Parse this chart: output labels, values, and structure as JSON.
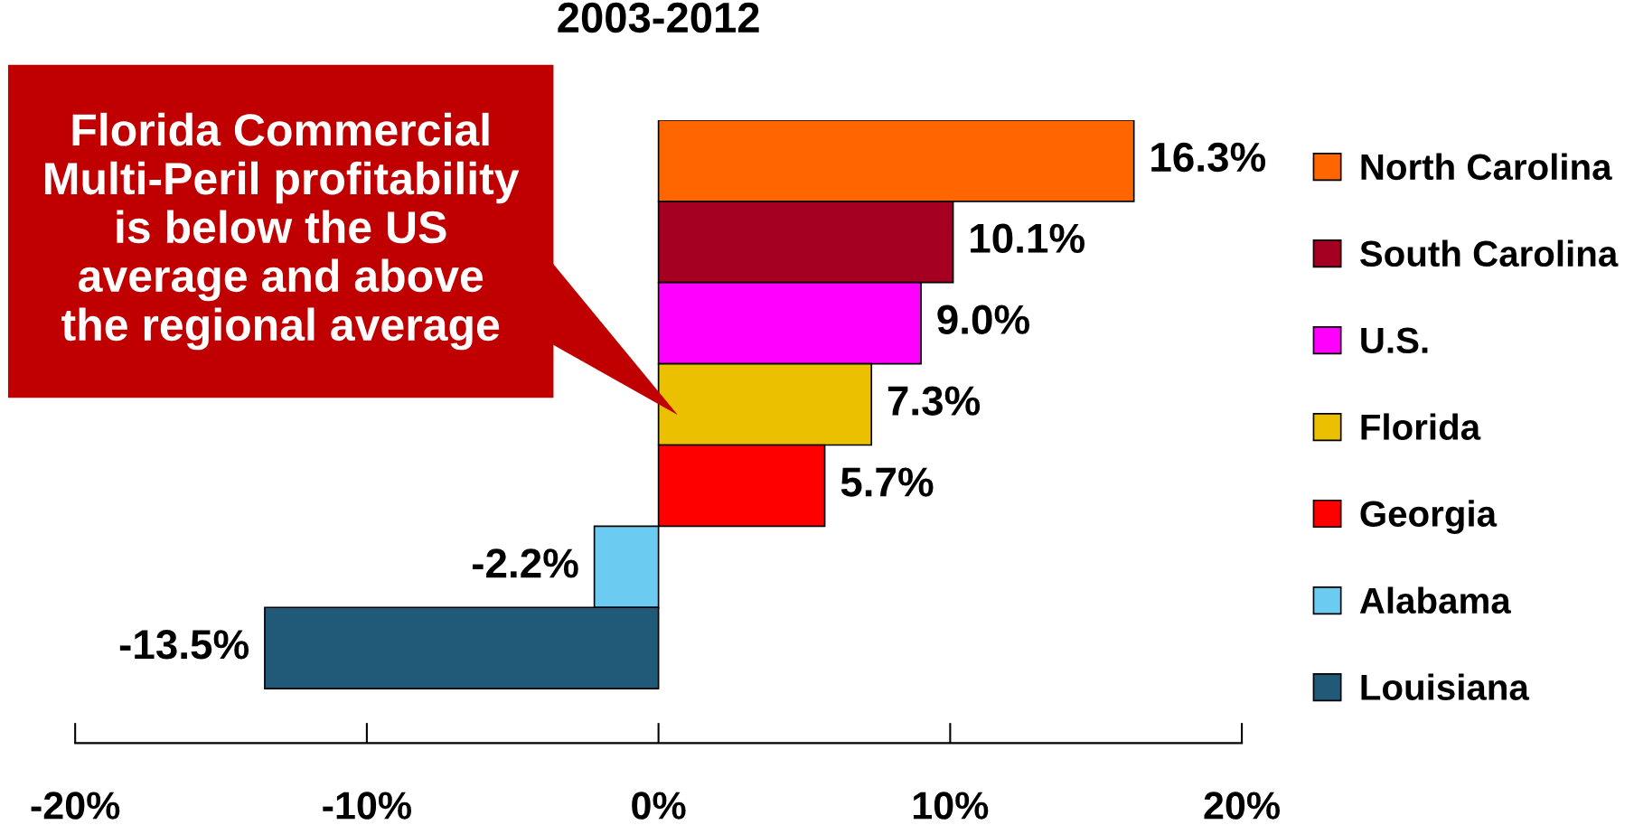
{
  "chart_data": {
    "type": "bar",
    "orientation": "horizontal",
    "title": "2003-2012",
    "categories": [
      null,
      null,
      null,
      null,
      null,
      null,
      null
    ],
    "series": [
      {
        "name": "North Carolina",
        "color": "#ff6600",
        "values": [
          16.3,
          null,
          null,
          null,
          null,
          null,
          null
        ],
        "value_labels": [
          "16.3%",
          null,
          null,
          null,
          null,
          null,
          null
        ]
      },
      {
        "name": "South Carolina",
        "color": "#a50021",
        "values": [
          null,
          10.1,
          null,
          null,
          null,
          null,
          null
        ],
        "value_labels": [
          null,
          "10.1%",
          null,
          null,
          null,
          null,
          null
        ]
      },
      {
        "name": "U.S.",
        "color": "#ff00ff",
        "values": [
          null,
          null,
          9.0,
          null,
          null,
          null,
          null
        ],
        "value_labels": [
          null,
          null,
          "9.0%",
          null,
          null,
          null,
          null
        ]
      },
      {
        "name": "Florida",
        "color": "#ebc000",
        "values": [
          null,
          null,
          null,
          7.3,
          null,
          null,
          null
        ],
        "value_labels": [
          null,
          null,
          null,
          "7.3%",
          null,
          null,
          null
        ]
      },
      {
        "name": "Georgia",
        "color": "#ff0000",
        "values": [
          null,
          null,
          null,
          null,
          5.7,
          null,
          null
        ],
        "value_labels": [
          null,
          null,
          null,
          null,
          "5.7%",
          null,
          null
        ]
      },
      {
        "name": "Alabama",
        "color": "#6ccbf0",
        "values": [
          null,
          null,
          null,
          null,
          null,
          -2.2,
          null
        ],
        "value_labels": [
          null,
          null,
          null,
          null,
          null,
          "-2.2%",
          null
        ]
      },
      {
        "name": "Louisiana",
        "color": "#215a78",
        "values": [
          null,
          null,
          null,
          null,
          null,
          null,
          -13.5
        ],
        "value_labels": [
          null,
          null,
          null,
          null,
          null,
          null,
          "-13.5%"
        ]
      }
    ],
    "xlim": [
      -20,
      20
    ],
    "xticks": [
      {
        "value": -20,
        "label": "-20%"
      },
      {
        "value": -10,
        "label": "-10%"
      },
      {
        "value": 0,
        "label": "0%"
      },
      {
        "value": 10,
        "label": "10%"
      },
      {
        "value": 20,
        "label": "20%"
      }
    ],
    "annotations": [
      "Florida Commercial\nMulti-Peril profitability\nis below the US\naverage and above\nthe regional average"
    ],
    "stacked": true,
    "legend": "right",
    "grid": false
  }
}
